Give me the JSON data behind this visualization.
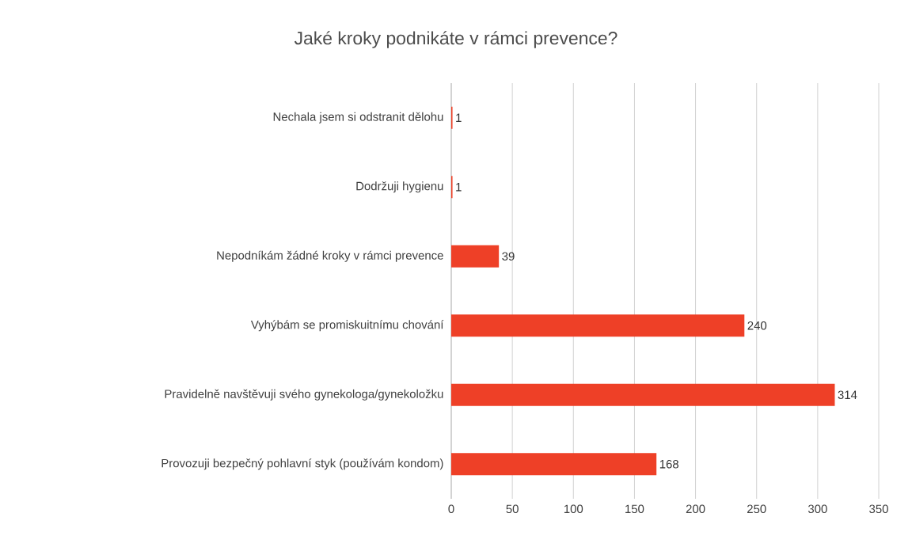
{
  "chart_data": {
    "type": "bar",
    "orientation": "horizontal",
    "title": "Jaké kroky podnikáte v rámci prevence?",
    "categories": [
      "Nechala jsem si odstranit dělohu",
      "Dodržuji hygienu",
      "Nepodníkám žádné kroky v rámci prevence",
      "Vyhýbám se promiskuitnímu chování",
      "Pravidelně navštěvuji svého gynekologa/gynekoložku",
      "Provozuji bezpečný pohlavní styk (používám kondom)"
    ],
    "values": [
      1,
      1,
      39,
      240,
      314,
      168
    ],
    "color": "#ee4027",
    "xlim": [
      0,
      350
    ],
    "xticks": [
      0,
      50,
      100,
      150,
      200,
      250,
      300,
      350
    ],
    "grid": "x",
    "data_labels": true
  }
}
